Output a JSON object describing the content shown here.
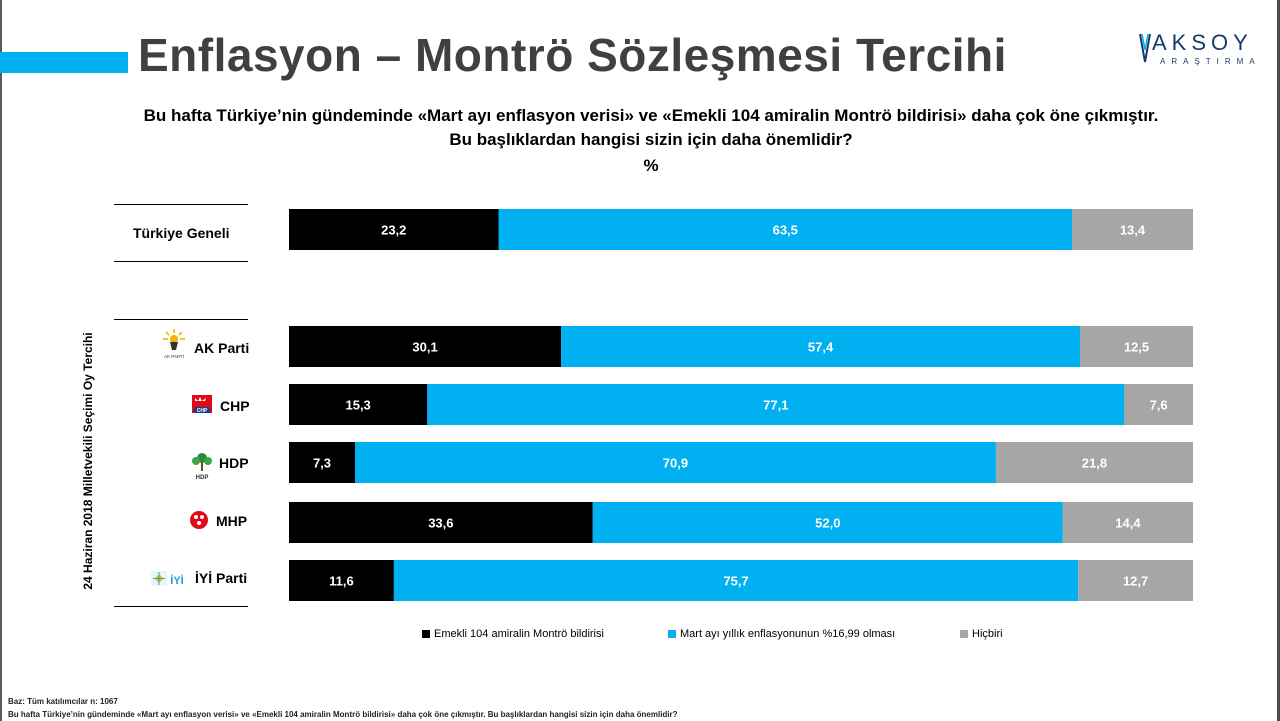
{
  "header": {
    "title": "Enflasyon – Montrö Sözleşmesi Tercihi",
    "logo_main": "AKSOY",
    "logo_sub": "ARAŞTIRMA"
  },
  "question": {
    "line1": "Bu hafta Türkiye’nin gündeminde «Mart ayı enflasyon verisi» ve «Emekli 104 amiralin Montrö bildirisi» daha çok öne çıkmıştır.",
    "line2": "Bu başlıklardan hangisi sizin için daha önemlidir?",
    "unit": "%"
  },
  "side_label": "24 Haziran 2018 Milletvekili Seçimi Oy Tercihi",
  "party_icon_texts": {
    "akp": "AK PARTİ",
    "hdp": "HDP",
    "iyi": "İYİ"
  },
  "chart_data": {
    "type": "bar",
    "orientation": "horizontal",
    "stacked": true,
    "unit": "%",
    "categories": [
      "Türkiye Geneli",
      "AK Parti",
      "CHP",
      "HDP",
      "MHP",
      "İYİ Parti"
    ],
    "category_labels": [
      "23,2|63,5|13,4"
    ],
    "series": [
      {
        "name": "Emekli 104 amiralin Montrö bildirisi",
        "color": "#000000",
        "text_color": "#ffffff",
        "values": [
          23.2,
          30.1,
          15.3,
          7.3,
          33.6,
          11.6
        ],
        "labels": [
          "23,2",
          "30,1",
          "15,3",
          "7,3",
          "33,6",
          "11,6"
        ]
      },
      {
        "name": "Mart ayı yıllık enflasyonunun %16,99 olması",
        "color": "#00b0f0",
        "text_color": "#ffffff",
        "values": [
          63.5,
          57.4,
          77.1,
          70.9,
          52.0,
          75.7
        ],
        "labels": [
          "63,5",
          "57,4",
          "77,1",
          "70,9",
          "52,0",
          "75,7"
        ]
      },
      {
        "name": "Hiçbiri",
        "color": "#a6a6a6",
        "text_color": "#ffffff",
        "values": [
          13.4,
          12.5,
          7.6,
          21.8,
          14.4,
          12.7
        ],
        "labels": [
          "13,4",
          "12,5",
          "7,6",
          "21,8",
          "14,4",
          "12,7"
        ]
      }
    ],
    "xlim": [
      0,
      100
    ],
    "grid": false,
    "legend_position": "bottom"
  },
  "footer": {
    "base": "Baz: Tüm katılımcılar n: 1067",
    "note": "Bu hafta Türkiye’nin gündeminde «Mart ayı enflasyon verisi» ve «Emekli 104 amiralin Montrö bildirisi» daha çok öne çıkmıştır. Bu başlıklardan hangisi sizin için daha önemlidir?"
  }
}
